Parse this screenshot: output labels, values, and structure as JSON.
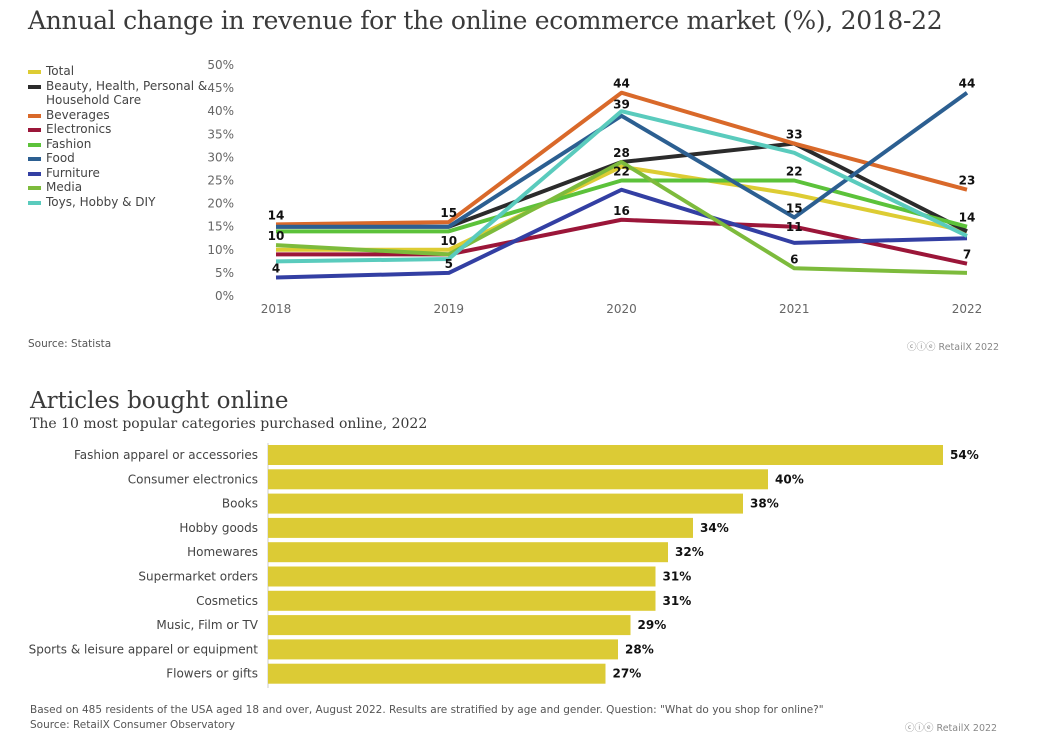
{
  "chart_data": [
    {
      "type": "line",
      "title": "Annual change in revenue for the online ecommerce market (%), 2018-22",
      "x": [
        "2018",
        "2019",
        "2020",
        "2021",
        "2022"
      ],
      "ylim": [
        0,
        50
      ],
      "yticks": [
        "0%",
        "5%",
        "10%",
        "15%",
        "20%",
        "25%",
        "30%",
        "35%",
        "40%",
        "45%",
        "50%"
      ],
      "grid": false,
      "legend_placement": "left",
      "series": [
        {
          "name": "Total",
          "color": "#ddcc33",
          "values": [
            10,
            10,
            28,
            22,
            14
          ]
        },
        {
          "name": "Beauty, Health, Personal & Household Care",
          "color": "#2b2b2b",
          "values": [
            15,
            15,
            29,
            33,
            14
          ]
        },
        {
          "name": "Beverages",
          "color": "#d9692a",
          "values": [
            15.5,
            16,
            44,
            33,
            23
          ]
        },
        {
          "name": "Electronics",
          "color": "#9b1639",
          "values": [
            9,
            9,
            16.5,
            15,
            7
          ]
        },
        {
          "name": "Fashion",
          "color": "#5cc23a",
          "values": [
            14,
            14,
            25,
            25,
            15
          ]
        },
        {
          "name": "Food",
          "color": "#2c5f91",
          "values": [
            15,
            15,
            39,
            17,
            44
          ]
        },
        {
          "name": "Furniture",
          "color": "#333fa3",
          "values": [
            4,
            5,
            23,
            11.5,
            12.5
          ]
        },
        {
          "name": "Media",
          "color": "#7dbb3c",
          "values": [
            11,
            9,
            29,
            6,
            5
          ]
        },
        {
          "name": "Toys, Hobby & DIY",
          "color": "#5acbbd",
          "values": [
            7.5,
            8,
            40,
            31,
            13
          ]
        }
      ],
      "annotations": [
        {
          "x": "2018",
          "y": 15.5,
          "text": "14"
        },
        {
          "x": "2018",
          "y": 11,
          "text": "10"
        },
        {
          "x": "2018",
          "y": 4,
          "text": "4"
        },
        {
          "x": "2019",
          "y": 16,
          "text": "15"
        },
        {
          "x": "2019",
          "y": 10,
          "text": "10"
        },
        {
          "x": "2019",
          "y": 5,
          "text": "5"
        },
        {
          "x": "2020",
          "y": 44,
          "text": "44"
        },
        {
          "x": "2020",
          "y": 39.5,
          "text": "39"
        },
        {
          "x": "2020",
          "y": 29,
          "text": "28"
        },
        {
          "x": "2020",
          "y": 25,
          "text": "22"
        },
        {
          "x": "2020",
          "y": 16.5,
          "text": "16"
        },
        {
          "x": "2021",
          "y": 33,
          "text": "33"
        },
        {
          "x": "2021",
          "y": 25,
          "text": "22"
        },
        {
          "x": "2021",
          "y": 17,
          "text": "15"
        },
        {
          "x": "2021",
          "y": 13,
          "text": "11"
        },
        {
          "x": "2021",
          "y": 6,
          "text": "6"
        },
        {
          "x": "2022",
          "y": 44,
          "text": "44"
        },
        {
          "x": "2022",
          "y": 23,
          "text": "23"
        },
        {
          "x": "2022",
          "y": 15,
          "text": "14"
        },
        {
          "x": "2022",
          "y": 7,
          "text": "7"
        }
      ],
      "source": "Source: Statista",
      "credit": "RetailX 2022"
    },
    {
      "type": "bar",
      "orientation": "horizontal",
      "title": "Articles bought online",
      "subtitle": "The 10 most popular categories purchased online, 2022",
      "color": "#dccb35",
      "categories": [
        "Fashion apparel or accessories",
        "Consumer electronics",
        "Books",
        "Hobby goods",
        "Homewares",
        "Supermarket orders",
        "Cosmetics",
        "Music, Film or TV",
        "Sports & leisure apparel or equipment",
        "Flowers or gifts"
      ],
      "values": [
        54,
        40,
        38,
        34,
        32,
        31,
        31,
        29,
        28,
        27
      ],
      "labels": [
        "54%",
        "40%",
        "38%",
        "34%",
        "32%",
        "31%",
        "31%",
        "29%",
        "28%",
        "27%"
      ],
      "footnote": "Based on 485 residents of the USA aged 18 and over, August 2022. Results are stratified by age and gender. Question: \"What do you shop for online?\"",
      "source": "Source: RetailX Consumer Observatory",
      "credit": "RetailX 2022"
    }
  ]
}
